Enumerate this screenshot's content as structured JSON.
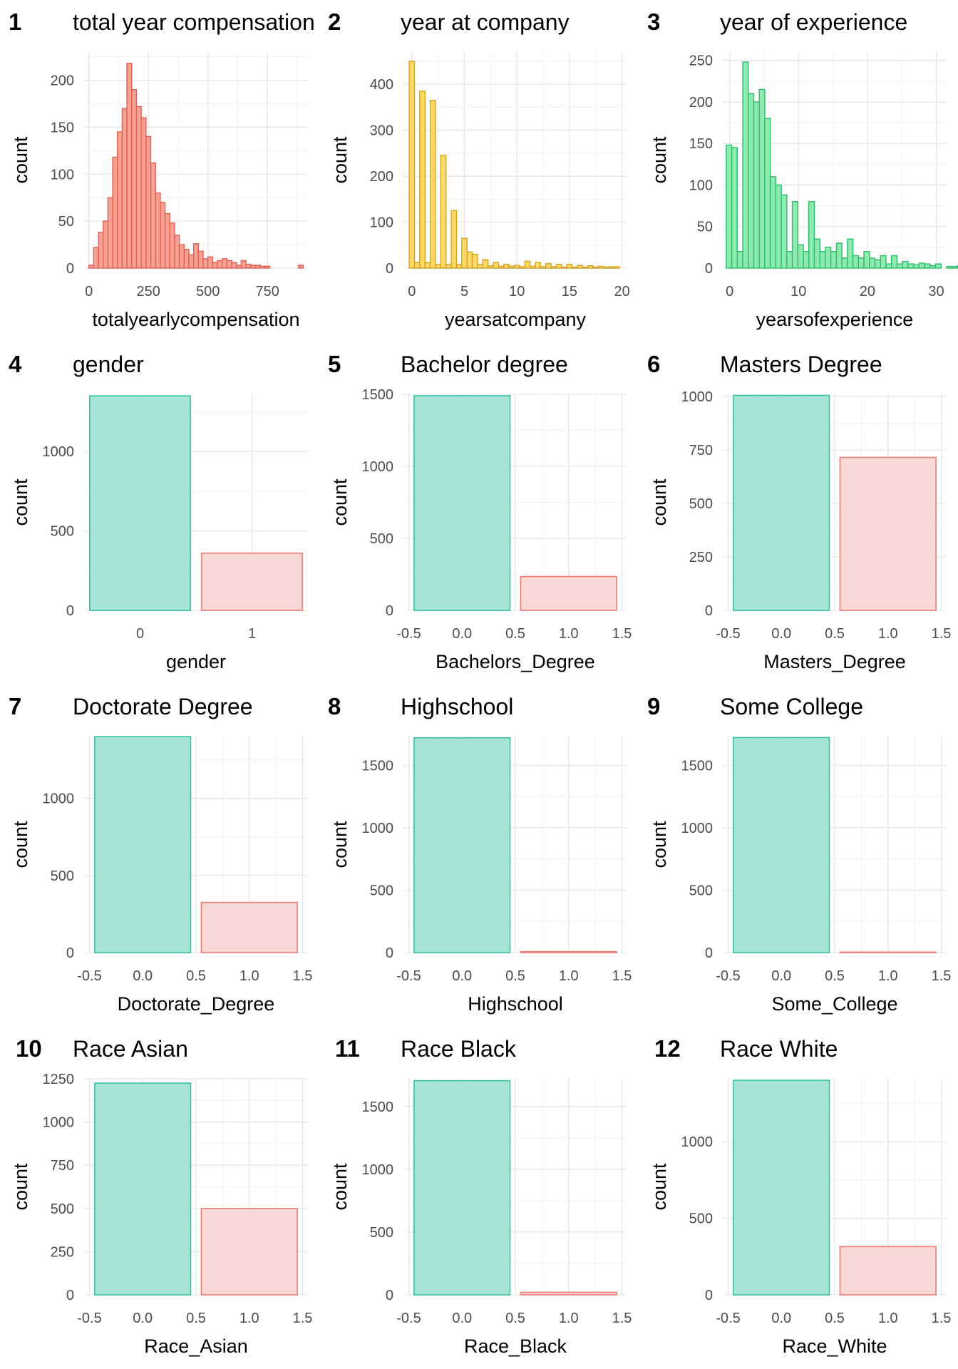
{
  "chart_data": [
    {
      "tag": "1",
      "type": "bar",
      "title": "total year compensation",
      "xlabel": "totalyearlycompensation",
      "ylabel": "count",
      "xlim": [
        -20,
        920
      ],
      "ylim": [
        0,
        230
      ],
      "xticks": [
        0,
        250,
        500,
        750
      ],
      "yticks": [
        0,
        50,
        100,
        150,
        200
      ],
      "fill": "#f8a195",
      "stroke": "#e55f52",
      "bin_start": 0,
      "bin_width": 20,
      "values": [
        3,
        22,
        38,
        50,
        75,
        118,
        145,
        170,
        218,
        190,
        172,
        160,
        140,
        112,
        80,
        70,
        58,
        48,
        35,
        25,
        20,
        14,
        26,
        18,
        10,
        12,
        6,
        8,
        10,
        8,
        6,
        3,
        8,
        4,
        3,
        3,
        2,
        2,
        0,
        0,
        0,
        0,
        0,
        0,
        3
      ]
    },
    {
      "tag": "2",
      "type": "bar",
      "title": "year at company",
      "xlabel": "yearsatcompany",
      "ylabel": "count",
      "xlim": [
        -0.8,
        20.5
      ],
      "ylim": [
        0,
        470
      ],
      "xticks": [
        0,
        5,
        10,
        15,
        20
      ],
      "yticks": [
        0,
        100,
        200,
        300,
        400
      ],
      "fill": "#ffda66",
      "stroke": "#d4a21a",
      "bin_start": -0.25,
      "bin_width": 0.5,
      "values": [
        450,
        12,
        385,
        12,
        365,
        8,
        245,
        8,
        125,
        8,
        65,
        35,
        30,
        8,
        18,
        5,
        12,
        4,
        8,
        4,
        6,
        3,
        15,
        4,
        12,
        3,
        10,
        3,
        8,
        2,
        8,
        2,
        6,
        2,
        5,
        2,
        4,
        2,
        3,
        3
      ]
    },
    {
      "tag": "3",
      "type": "bar",
      "title": "year of experience",
      "xlabel": "yearsofexperience",
      "ylabel": "count",
      "xlim": [
        -1,
        31.5
      ],
      "ylim": [
        0,
        260
      ],
      "xticks": [
        0,
        10,
        20,
        30
      ],
      "yticks": [
        0,
        50,
        100,
        150,
        200,
        250
      ],
      "fill": "#8eeab0",
      "stroke": "#2ebf6a",
      "bin_start": -0.5,
      "bin_width": 0.8,
      "values": [
        148,
        145,
        20,
        248,
        210,
        200,
        215,
        180,
        110,
        100,
        88,
        20,
        80,
        28,
        20,
        80,
        35,
        20,
        25,
        20,
        30,
        12,
        35,
        15,
        12,
        20,
        12,
        10,
        15,
        5,
        15,
        5,
        8,
        5,
        4,
        6,
        5,
        3,
        5,
        0,
        2,
        2,
        3,
        5
      ]
    },
    {
      "tag": "4",
      "type": "bar",
      "title": "gender",
      "xlabel": "gender",
      "ylabel": "count",
      "xmode": "discrete",
      "categories": [
        "0",
        "1"
      ],
      "ylim": [
        0,
        1360
      ],
      "yticks": [
        0,
        500,
        1000
      ],
      "values": [
        1350,
        360
      ],
      "colors": [
        {
          "fill": "#a6e4d7",
          "stroke": "#36c1a4"
        },
        {
          "fill": "#f9d9d7",
          "stroke": "#f07b71"
        }
      ]
    },
    {
      "tag": "5",
      "type": "bar",
      "title": "Bachelor degree",
      "xlabel": "Bachelors_Degree",
      "ylabel": "count",
      "xlim": [
        -0.55,
        1.55
      ],
      "ylim": [
        0,
        1500
      ],
      "xticks": [
        "-0.5",
        "0.0",
        "0.5",
        "1.0",
        "1.5"
      ],
      "yticks": [
        0,
        500,
        1000,
        1500
      ],
      "categories": [
        0,
        1
      ],
      "bar_width": 0.9,
      "values": [
        1490,
        235
      ],
      "colors": [
        {
          "fill": "#a6e4d7",
          "stroke": "#36c1a4"
        },
        {
          "fill": "#f9d9d7",
          "stroke": "#f07b71"
        }
      ]
    },
    {
      "tag": "6",
      "type": "bar",
      "title": "Masters Degree",
      "xlabel": "Masters_Degree",
      "ylabel": "count",
      "xlim": [
        -0.55,
        1.55
      ],
      "ylim": [
        0,
        1010
      ],
      "xticks": [
        "-0.5",
        "0.0",
        "0.5",
        "1.0",
        "1.5"
      ],
      "yticks": [
        0,
        250,
        500,
        750,
        1000
      ],
      "categories": [
        0,
        1
      ],
      "bar_width": 0.9,
      "values": [
        1005,
        715
      ],
      "colors": [
        {
          "fill": "#a6e4d7",
          "stroke": "#36c1a4"
        },
        {
          "fill": "#f9d9d7",
          "stroke": "#f07b71"
        }
      ]
    },
    {
      "tag": "7",
      "type": "bar",
      "title": "Doctorate Degree",
      "xlabel": "Doctorate_Degree",
      "ylabel": "count",
      "xlim": [
        -0.55,
        1.55
      ],
      "ylim": [
        0,
        1400
      ],
      "xticks": [
        "-0.5",
        "0.0",
        "0.5",
        "1.0",
        "1.5"
      ],
      "yticks": [
        0,
        500,
        1000
      ],
      "categories": [
        0,
        1
      ],
      "bar_width": 0.9,
      "values": [
        1400,
        325
      ],
      "colors": [
        {
          "fill": "#a6e4d7",
          "stroke": "#36c1a4"
        },
        {
          "fill": "#f9d9d7",
          "stroke": "#f07b71"
        }
      ]
    },
    {
      "tag": "8",
      "type": "bar",
      "title": "Highschool",
      "xlabel": "Highschool",
      "ylabel": "count",
      "xlim": [
        -0.55,
        1.55
      ],
      "ylim": [
        0,
        1730
      ],
      "xticks": [
        "-0.5",
        "0.0",
        "0.5",
        "1.0",
        "1.5"
      ],
      "yticks": [
        0,
        500,
        1000,
        1500
      ],
      "categories": [
        0,
        1
      ],
      "bar_width": 0.9,
      "values": [
        1720,
        8
      ],
      "colors": [
        {
          "fill": "#a6e4d7",
          "stroke": "#36c1a4"
        },
        {
          "fill": "#f9d9d7",
          "stroke": "#f07b71"
        }
      ]
    },
    {
      "tag": "9",
      "type": "bar",
      "title": "Some College",
      "xlabel": "Some_College",
      "ylabel": "count",
      "xlim": [
        -0.55,
        1.55
      ],
      "ylim": [
        0,
        1730
      ],
      "xticks": [
        "-0.5",
        "0.0",
        "0.5",
        "1.0",
        "1.5"
      ],
      "yticks": [
        0,
        500,
        1000,
        1500
      ],
      "categories": [
        0,
        1
      ],
      "bar_width": 0.9,
      "values": [
        1722,
        4
      ],
      "colors": [
        {
          "fill": "#a6e4d7",
          "stroke": "#36c1a4"
        },
        {
          "fill": "#f9d9d7",
          "stroke": "#f07b71"
        }
      ]
    },
    {
      "tag": "10",
      "type": "bar",
      "title": "Race Asian",
      "xlabel": "Race_Asian",
      "ylabel": "count",
      "xlim": [
        -0.55,
        1.55
      ],
      "ylim": [
        0,
        1250
      ],
      "xticks": [
        "-0.5",
        "0.0",
        "0.5",
        "1.0",
        "1.5"
      ],
      "yticks": [
        0,
        250,
        500,
        750,
        1000,
        1250
      ],
      "categories": [
        0,
        1
      ],
      "bar_width": 0.9,
      "values": [
        1225,
        500
      ],
      "colors": [
        {
          "fill": "#a6e4d7",
          "stroke": "#36c1a4"
        },
        {
          "fill": "#f9d9d7",
          "stroke": "#f07b71"
        }
      ]
    },
    {
      "tag": "11",
      "type": "bar",
      "title": "Race Black",
      "xlabel": "Race_Black",
      "ylabel": "count",
      "xlim": [
        -0.55,
        1.55
      ],
      "ylim": [
        0,
        1720
      ],
      "xticks": [
        "-0.5",
        "0.0",
        "0.5",
        "1.0",
        "1.5"
      ],
      "yticks": [
        0,
        500,
        1000,
        1500
      ],
      "categories": [
        0,
        1
      ],
      "bar_width": 0.9,
      "values": [
        1705,
        20
      ],
      "colors": [
        {
          "fill": "#a6e4d7",
          "stroke": "#36c1a4"
        },
        {
          "fill": "#f9d9d7",
          "stroke": "#f07b71"
        }
      ]
    },
    {
      "tag": "12",
      "type": "bar",
      "title": "Race White",
      "xlabel": "Race_White",
      "ylabel": "count",
      "xlim": [
        -0.55,
        1.55
      ],
      "ylim": [
        0,
        1410
      ],
      "xticks": [
        "-0.5",
        "0.0",
        "0.5",
        "1.0",
        "1.5"
      ],
      "yticks": [
        0,
        500,
        1000
      ],
      "categories": [
        0,
        1
      ],
      "bar_width": 0.9,
      "values": [
        1400,
        315
      ],
      "colors": [
        {
          "fill": "#a6e4d7",
          "stroke": "#36c1a4"
        },
        {
          "fill": "#f9d9d7",
          "stroke": "#f07b71"
        }
      ]
    }
  ]
}
